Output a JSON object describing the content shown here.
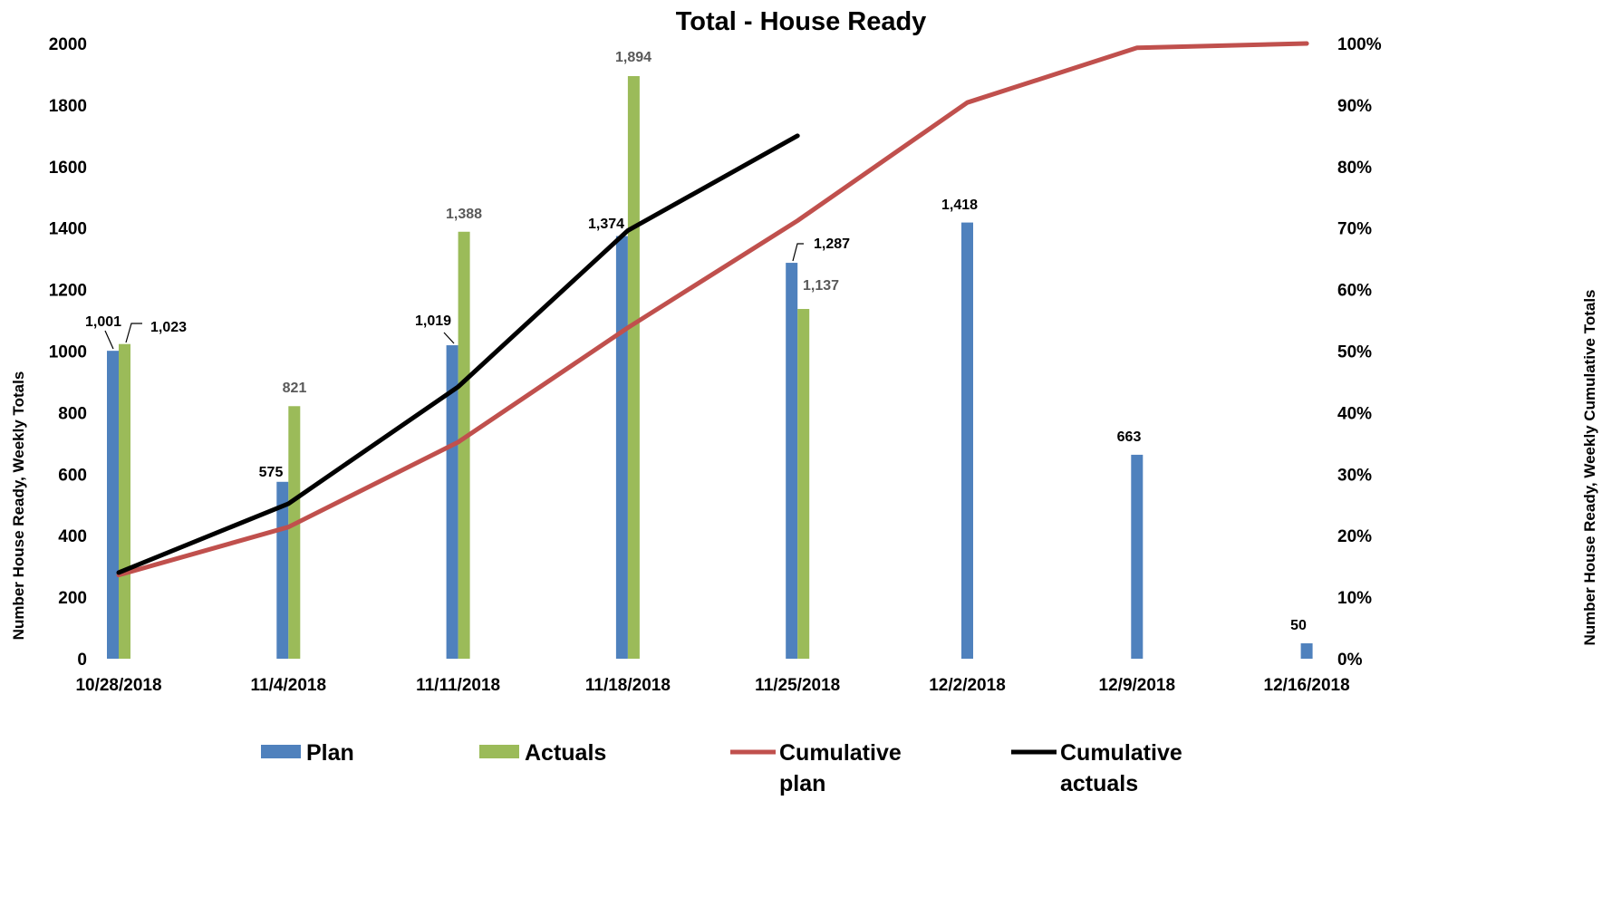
{
  "chart_data": {
    "type": "bar",
    "title": "Total - House Ready",
    "ylabel": "Number House Ready, Weekly Totals",
    "y2label": "Number House Ready, Weekly Cumulative Totals",
    "categories": [
      "10/28/2018",
      "11/4/2018",
      "11/11/2018",
      "11/18/2018",
      "11/25/2018",
      "12/2/2018",
      "12/9/2018",
      "12/16/2018"
    ],
    "ylim": [
      0,
      2000
    ],
    "yticks": [
      "0",
      "200",
      "400",
      "600",
      "800",
      "1000",
      "1200",
      "1400",
      "1600",
      "1800",
      "2000"
    ],
    "y2lim": [
      0,
      100
    ],
    "y2ticks": [
      "0%",
      "10%",
      "20%",
      "30%",
      "40%",
      "50%",
      "60%",
      "70%",
      "80%",
      "90%",
      "100%"
    ],
    "grid": false,
    "legend_position": "bottom",
    "series": [
      {
        "name": "Plan",
        "kind": "bar",
        "color": "#4f81bd",
        "values": [
          1001,
          575,
          1019,
          1374,
          1287,
          1418,
          663,
          50
        ],
        "labels": [
          "1,001",
          "575",
          "1,019",
          "1,374",
          "1,287",
          "1,418",
          "663",
          "50"
        ]
      },
      {
        "name": "Actuals",
        "kind": "bar",
        "color": "#9bbb59",
        "values": [
          1023,
          821,
          1388,
          1894,
          1137,
          null,
          null,
          null
        ],
        "labels": [
          "1,023",
          "821",
          "1,388",
          "1,894",
          "1,137",
          null,
          null,
          null
        ]
      },
      {
        "name": "Cumulative plan",
        "kind": "line",
        "axis": "y2",
        "color": "#c0504d",
        "values": [
          13.6,
          21.4,
          35.2,
          53.8,
          71.2,
          90.4,
          99.3,
          100
        ]
      },
      {
        "name": "Cumulative actuals",
        "kind": "line",
        "axis": "y2",
        "color": "#000000",
        "values": [
          14.0,
          25.2,
          44.2,
          69.6,
          85.0,
          null,
          null,
          null
        ]
      }
    ]
  }
}
